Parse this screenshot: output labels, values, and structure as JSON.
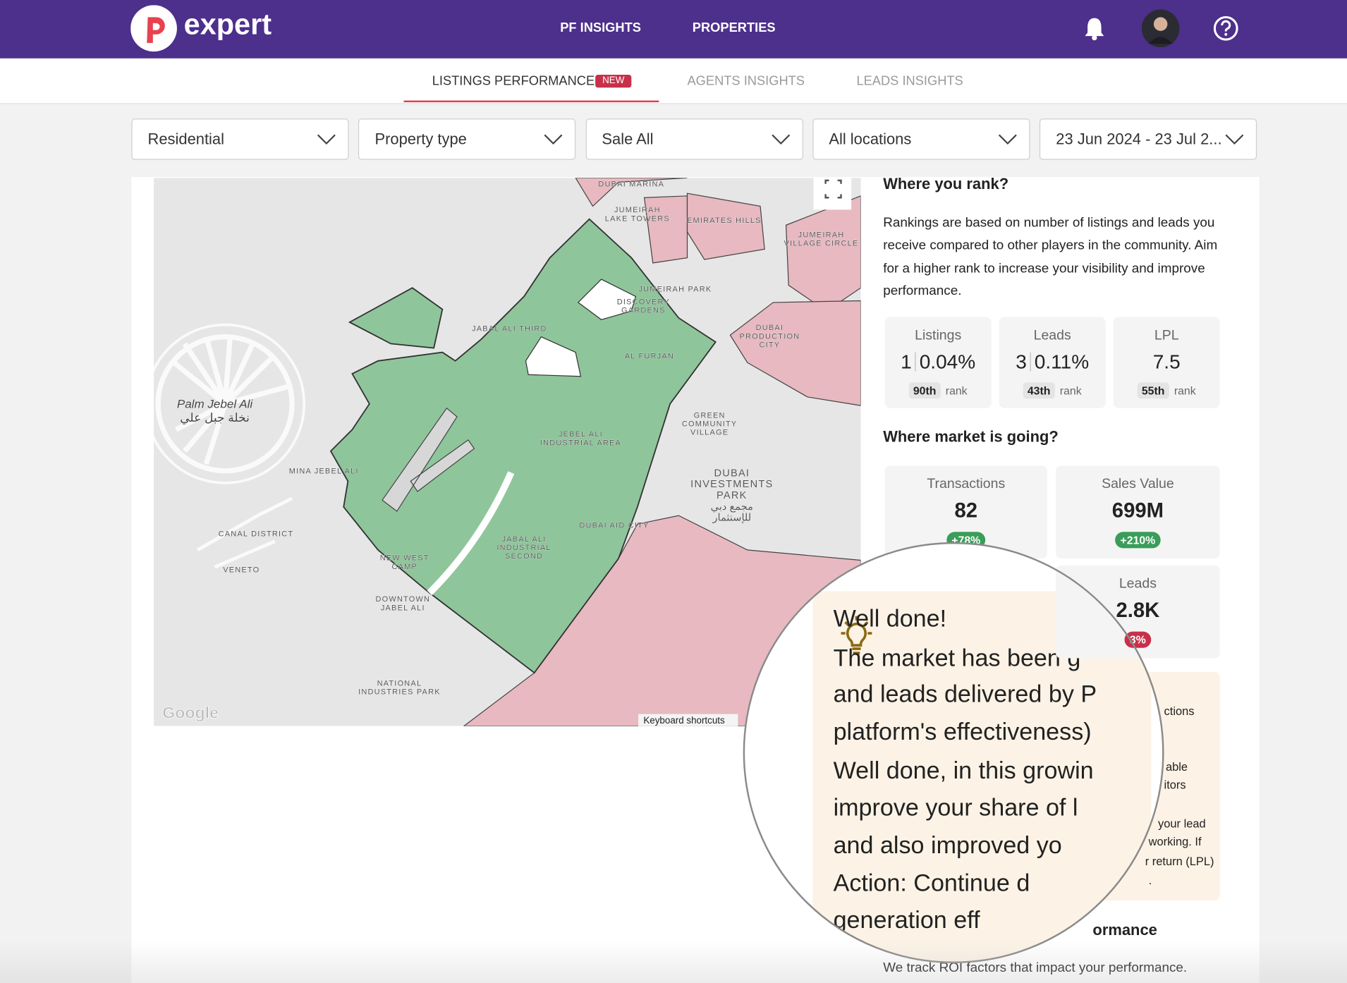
{
  "header": {
    "logo": "expert",
    "nav": [
      "PF INSIGHTS",
      "PROPERTIES"
    ]
  },
  "tabs": {
    "items": [
      "LISTINGS PERFORMANCE",
      "AGENTS INSIGHTS",
      "LEADS INSIGHTS"
    ],
    "badge": "NEW"
  },
  "filters": [
    "Residential",
    "Property type",
    "Sale All",
    "All locations",
    "23 Jun 2024 - 23 Jul 2..."
  ],
  "map": {
    "labels": [
      {
        "lines": [
          "DUBAI MARINA"
        ]
      },
      {
        "lines": [
          "JUMEIRAH",
          "LAKE TOWERS"
        ]
      },
      {
        "lines": [
          "EMIRATES HILLS"
        ]
      },
      {
        "lines": [
          "JUMEIRAH",
          "VILLAGE CIRCLE"
        ]
      },
      {
        "lines": [
          "JUMEIRAH PARK"
        ]
      },
      {
        "lines": [
          "DISCOVERY",
          "GARDENS"
        ]
      },
      {
        "lines": [
          "JABAL ALI THIRD"
        ]
      },
      {
        "lines": [
          "AL FURJAN"
        ]
      },
      {
        "lines": [
          "DUBAI",
          "PRODUCTION",
          "CITY"
        ]
      },
      {
        "lines": [
          "Palm Jebel Ali",
          "نخلة جبل علي"
        ]
      },
      {
        "lines": [
          "GREEN",
          "COMMUNITY",
          "VILLAGE"
        ]
      },
      {
        "lines": [
          "JEBEL ALI",
          "INDUSTRIAL AREA"
        ]
      },
      {
        "lines": [
          "DUBAI",
          "INVESTMENTS",
          "PARK",
          "مجمع دبي",
          "للإستثمار"
        ]
      },
      {
        "lines": [
          "MINA JEBEL ALI"
        ]
      },
      {
        "lines": [
          "CANAL DISTRICT"
        ]
      },
      {
        "lines": [
          "VENETO"
        ]
      },
      {
        "lines": [
          "NEW WEST",
          "CAMP"
        ]
      },
      {
        "lines": [
          "JABAL ALI",
          "INDUSTRIAL",
          "SECOND"
        ]
      },
      {
        "lines": [
          "DUBAI AID CITY"
        ]
      },
      {
        "lines": [
          "DOWNTOWN",
          "JABEL ALI"
        ]
      },
      {
        "lines": [
          "NATIONAL",
          "INDUSTRIES PARK"
        ]
      }
    ],
    "attribution": "Keyboard shortcuts",
    "brand": "Google"
  },
  "rank": {
    "title": "Where you rank?",
    "description": "Rankings are based on number of listings and leads you receive compared to other players in the community. Aim for a higher rank to increase your visibility and improve performance.",
    "rank_word": "rank",
    "cards": [
      {
        "label": "Listings",
        "count": "1",
        "share": "0.04%",
        "rank": "90th"
      },
      {
        "label": "Leads",
        "count": "3",
        "share": "0.11%",
        "rank": "43th"
      },
      {
        "label": "LPL",
        "value": "7.5",
        "rank": "55th"
      }
    ]
  },
  "market": {
    "title": "Where market is going?",
    "cards": [
      {
        "label": "Transactions",
        "value": "82",
        "change": "+78%"
      },
      {
        "label": "Sales Value",
        "value": "699M",
        "change": "+210%"
      },
      {
        "label": "Leads",
        "value": "2.8K",
        "change": "3%"
      }
    ]
  },
  "tip_fragments": [
    "ctions",
    "able",
    "itors",
    "your lead",
    "working. If",
    "r return (LPL)",
    "."
  ],
  "magnifier": {
    "lines": [
      "Well done!",
      "The market has been g",
      "and leads delivered by P",
      "platform's effectiveness)",
      "Well done, in this growin",
      "improve your share of l",
      "and also improved yo",
      "Action: Continue d",
      "generation eff"
    ]
  },
  "roi": {
    "title": "ormance",
    "description": "We track ROI factors that impact your performance."
  }
}
